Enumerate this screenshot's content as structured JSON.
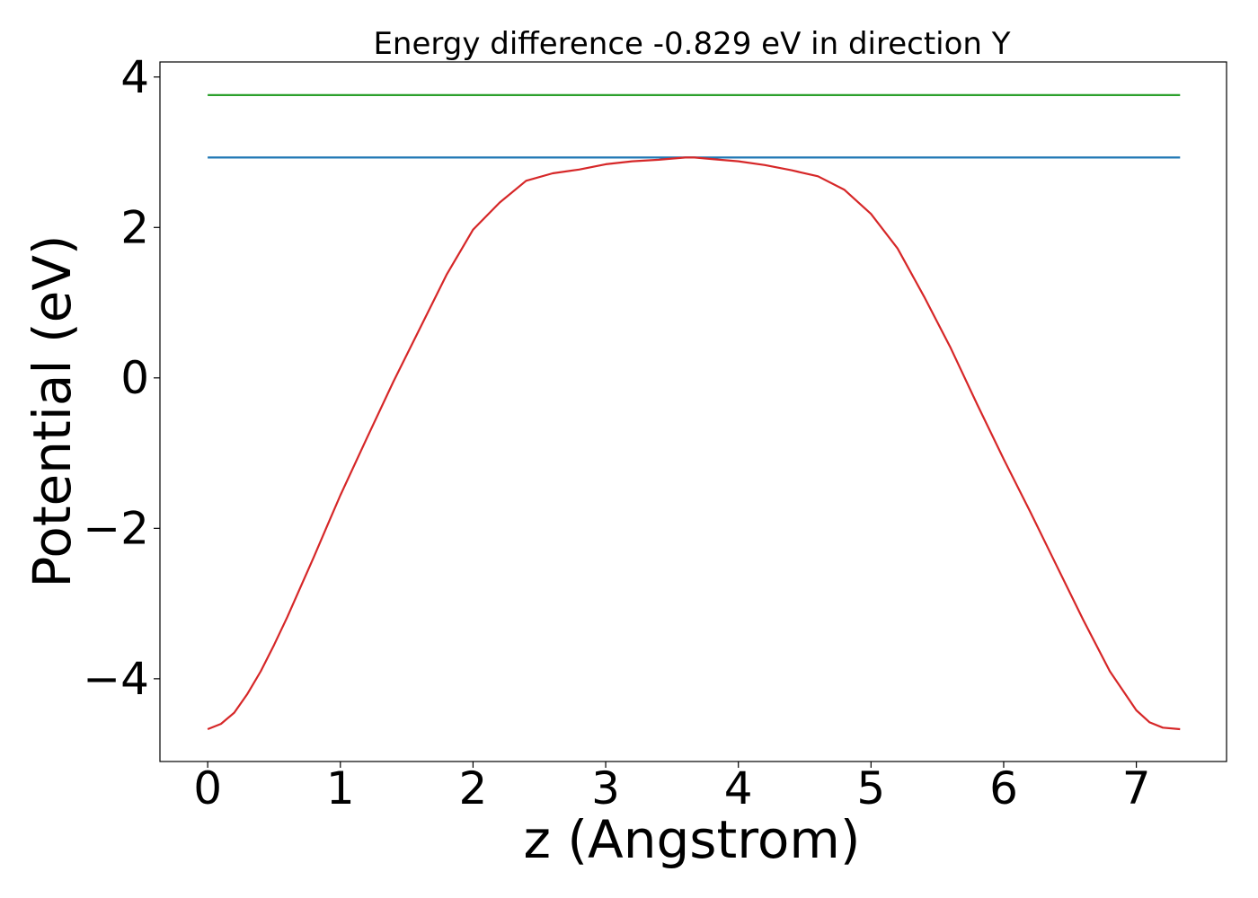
{
  "chart_data": {
    "type": "line",
    "title": "Energy difference -0.829 eV in direction Y",
    "xlabel": "z (Angstrom)",
    "ylabel": "Potential (eV)",
    "xlim": [
      -0.36,
      7.68
    ],
    "ylim": [
      -5.1,
      4.2
    ],
    "x_ticks": [
      0,
      1,
      2,
      3,
      4,
      5,
      6,
      7
    ],
    "x_tick_labels": [
      "0",
      "1",
      "2",
      "3",
      "4",
      "5",
      "6",
      "7"
    ],
    "y_ticks": [
      4,
      2,
      0,
      -2,
      -4
    ],
    "y_tick_labels": [
      "4",
      "2",
      "0",
      "−2",
      "−4"
    ],
    "grid": false,
    "series": [
      {
        "color": "#2ca02c",
        "x": [
          0,
          7.33
        ],
        "y": [
          3.76,
          3.76
        ]
      },
      {
        "color": "#1f77b4",
        "x": [
          0,
          7.33
        ],
        "y": [
          2.93,
          2.93
        ]
      },
      {
        "color": "#d62728",
        "x": [
          0,
          0.1,
          0.2,
          0.3,
          0.4,
          0.5,
          0.6,
          0.7,
          0.8,
          0.9,
          1.0,
          1.2,
          1.4,
          1.6,
          1.8,
          2.0,
          2.2,
          2.4,
          2.6,
          2.8,
          3.0,
          3.2,
          3.4,
          3.6,
          3.67,
          3.8,
          4.0,
          4.2,
          4.4,
          4.6,
          4.8,
          5.0,
          5.2,
          5.4,
          5.6,
          5.8,
          6.0,
          6.2,
          6.4,
          6.6,
          6.8,
          7.0,
          7.1,
          7.2,
          7.33
        ],
        "y": [
          -4.67,
          -4.6,
          -4.45,
          -4.2,
          -3.9,
          -3.55,
          -3.18,
          -2.78,
          -2.38,
          -1.97,
          -1.56,
          -0.8,
          -0.05,
          0.66,
          1.37,
          1.97,
          2.33,
          2.62,
          2.72,
          2.77,
          2.84,
          2.88,
          2.9,
          2.93,
          2.93,
          2.91,
          2.88,
          2.83,
          2.76,
          2.68,
          2.5,
          2.18,
          1.72,
          1.08,
          0.4,
          -0.35,
          -1.08,
          -1.78,
          -2.5,
          -3.22,
          -3.9,
          -4.42,
          -4.58,
          -4.65,
          -4.67
        ]
      }
    ]
  }
}
